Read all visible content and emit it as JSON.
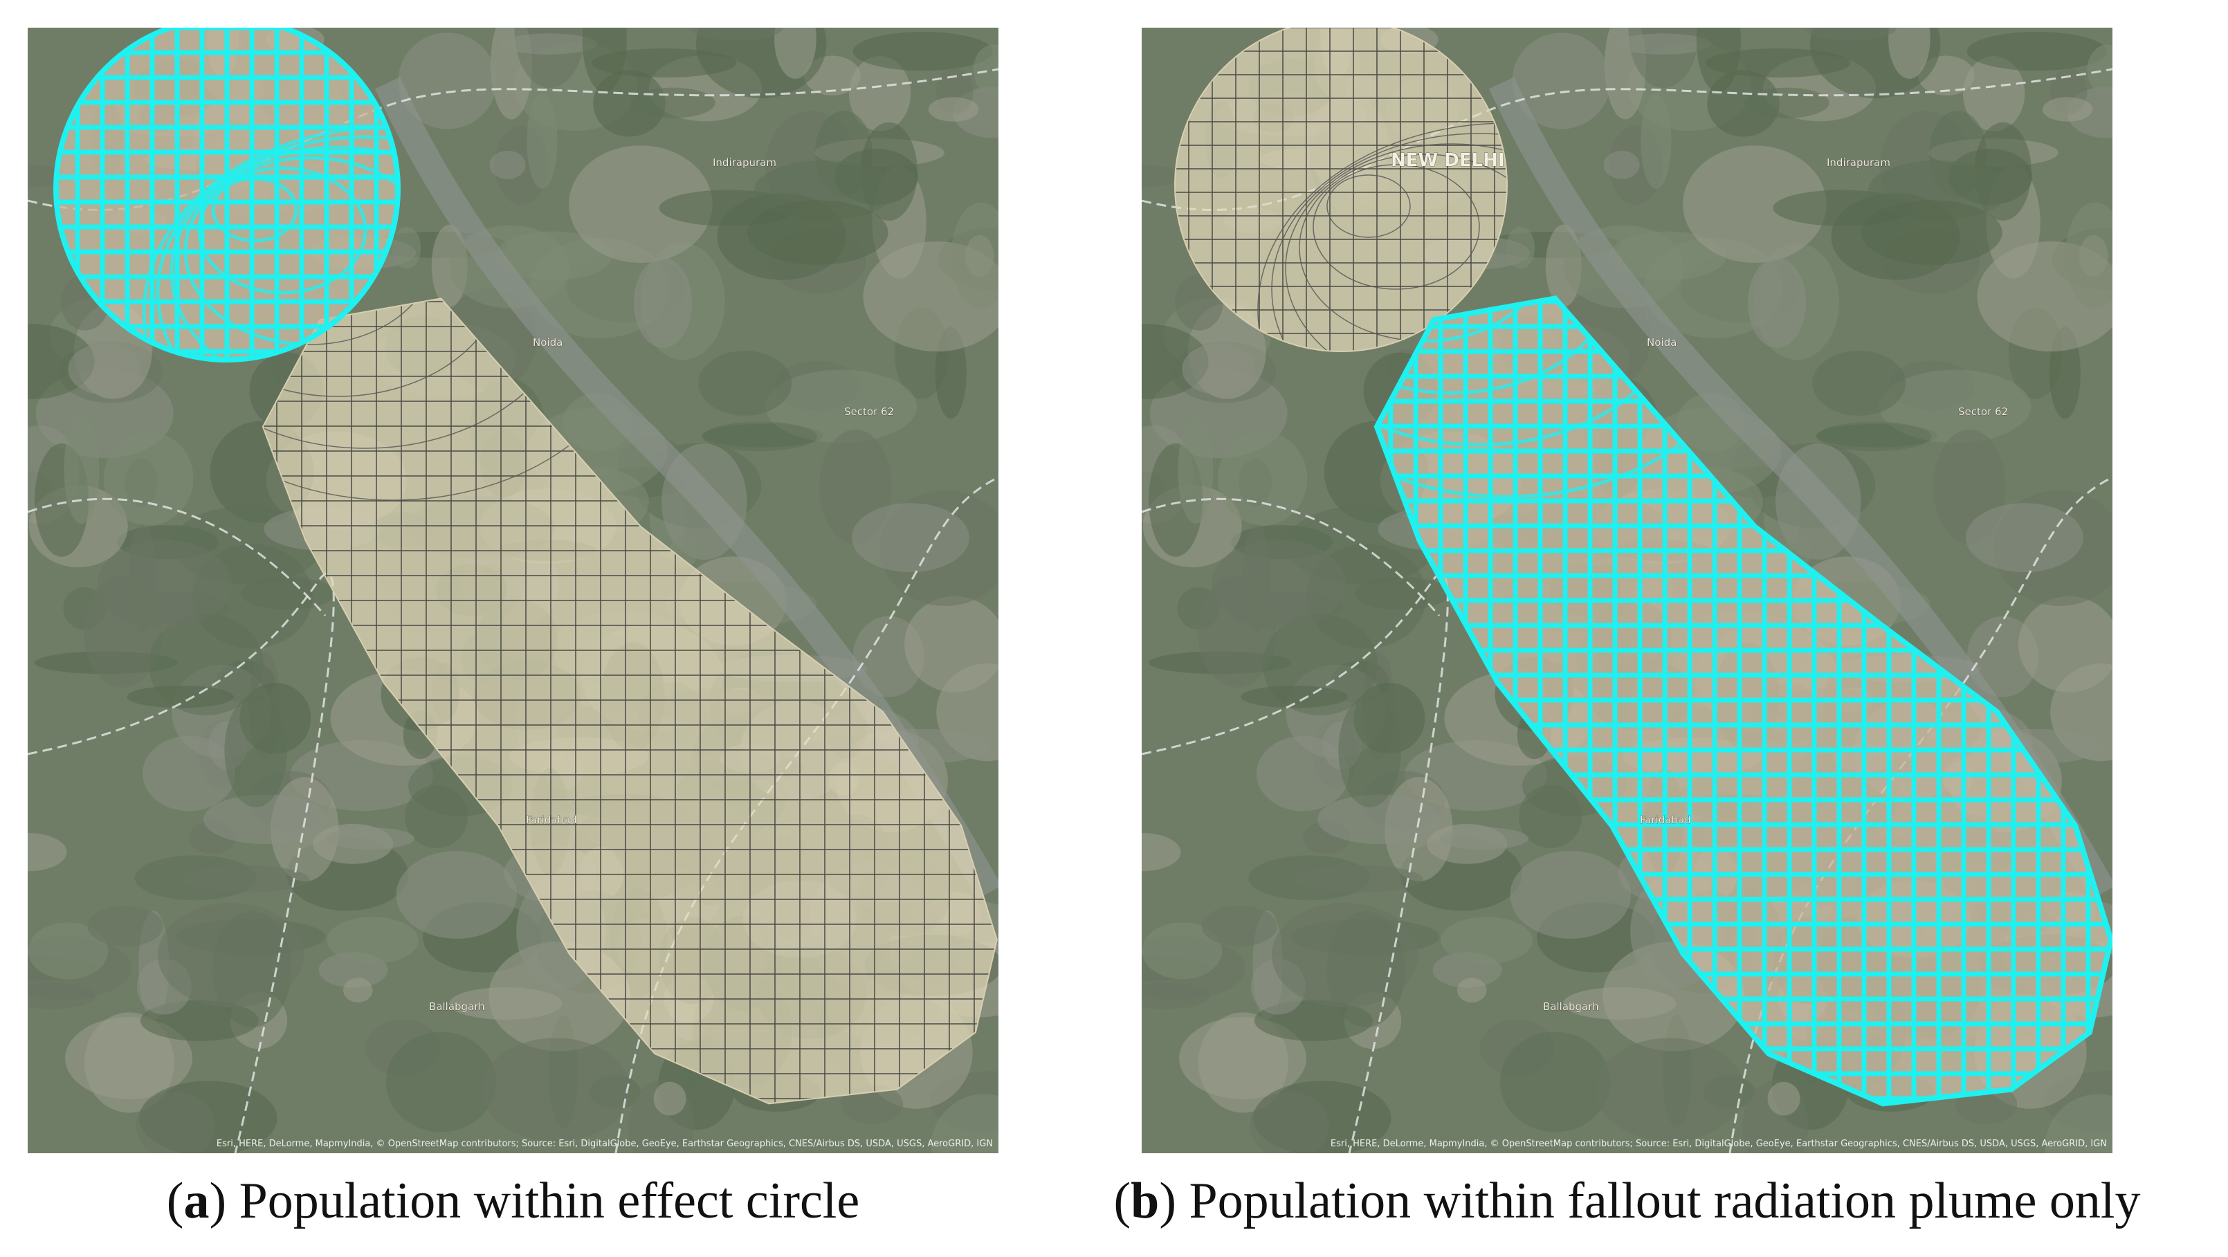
{
  "panels": [
    {
      "caption": [
        "(",
        "a",
        ") Population within effect circle"
      ],
      "places": [
        "Noida",
        "Indirapuram",
        "Sector 62",
        "Faridabad",
        "Ballabgarh"
      ],
      "highlight": "circle"
    },
    {
      "caption": [
        "(",
        "b",
        ") Population within fallout radiation plume only"
      ],
      "places": [
        "NEW DELHI",
        "Noida",
        "Indirapuram",
        "Sector 62",
        "Faridabad",
        "Ballabgarh"
      ],
      "highlight": "plume"
    }
  ],
  "attribution": "Esri, HERE, DeLorme, MapmyIndia, © OpenStreetMap contributors; Source: Esri, DigitalGlobe, GeoEye, Earthstar Geographics, CNES/Airbus DS, USDA, USGS, AeroGRID, IGN"
}
